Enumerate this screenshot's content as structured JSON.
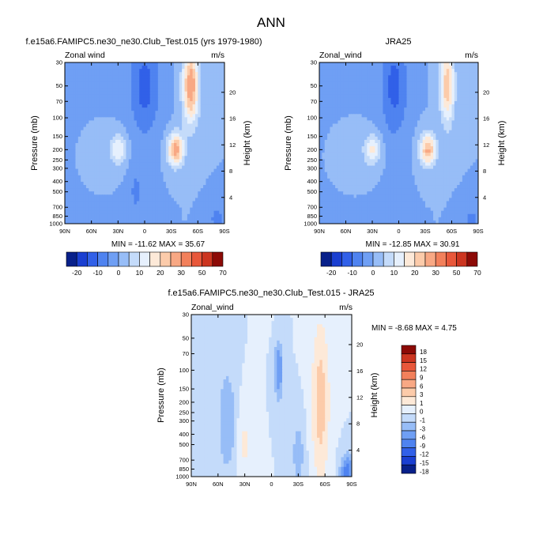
{
  "figure": {
    "title": "ANN"
  },
  "colors": {
    "abs_palette": [
      "#08208a",
      "#1a3fd1",
      "#3160e8",
      "#4f83f0",
      "#6f9ff4",
      "#97bdf7",
      "#c4dbfa",
      "#e6f0fd",
      "#fde9d8",
      "#fccbaa",
      "#f8a884",
      "#f2805b",
      "#e8573a",
      "#cc3520",
      "#8c0a06"
    ],
    "diff_palette": [
      "#08208a",
      "#1a3fd1",
      "#3160e8",
      "#4f83f0",
      "#6f9ff4",
      "#97bdf7",
      "#c4dbfa",
      "#e6f0fd",
      "#fde9d8",
      "#fccbaa",
      "#f8a884",
      "#f2805b",
      "#e8573a",
      "#cc3520",
      "#8c0a06"
    ],
    "axis": "#000000"
  },
  "chart_data": [
    {
      "type": "heatmap",
      "id": "model",
      "title": "f.e15a6.FAMIPC5.ne30_ne30.Club_Test.015 (yrs 1979-1980)",
      "left_label": "Zonal wind",
      "right_label": "m/s",
      "xlabel": "",
      "ylabel": "Pressure (mb)",
      "y2label": "Height (km)",
      "xticks": [
        "90N",
        "60N",
        "30N",
        "0",
        "30S",
        "60S",
        "90S"
      ],
      "xlim": [
        90,
        -90
      ],
      "yticks": [
        30,
        50,
        70,
        100,
        150,
        200,
        250,
        300,
        400,
        500,
        700,
        850,
        1000
      ],
      "ylim": [
        1000,
        30
      ],
      "y2ticks": [
        4,
        8,
        12,
        16,
        20
      ],
      "stats": "MIN = -11.62  MAX =  35.67",
      "min": -11.62,
      "max": 35.67,
      "field": [
        {
          "lat": 30,
          "p": 200,
          "val": 15,
          "sx": 10,
          "sy": 0.32
        },
        {
          "lat": -35,
          "p": 200,
          "val": 28,
          "sx": 9,
          "sy": 0.35
        },
        {
          "lat": -52,
          "p": 50,
          "val": 30,
          "sx": 9,
          "sy": 0.8
        },
        {
          "lat": 0,
          "p": 50,
          "val": -12,
          "sx": 17,
          "sy": 1.1
        },
        {
          "lat": 10,
          "p": 500,
          "val": -6,
          "sx": 8,
          "sy": 0.6
        },
        {
          "lat": -82,
          "p": 900,
          "val": -7,
          "sx": 10,
          "sy": 0.3
        }
      ]
    },
    {
      "type": "heatmap",
      "id": "obs",
      "title": "JRA25",
      "left_label": "Zonal_wind",
      "right_label": "m/s",
      "xlabel": "",
      "ylabel": "Pressure (mb)",
      "y2label": "Height (km)",
      "xticks": [
        "90N",
        "60N",
        "30N",
        "0",
        "30S",
        "60S",
        "90S"
      ],
      "xlim": [
        90,
        -90
      ],
      "yticks": [
        30,
        50,
        70,
        100,
        150,
        200,
        250,
        300,
        400,
        500,
        700,
        850,
        1000
      ],
      "ylim": [
        1000,
        30
      ],
      "y2ticks": [
        4,
        8,
        12,
        16,
        20
      ],
      "stats": "MIN = -12.85  MAX =  30.91",
      "min": -12.85,
      "max": 30.91,
      "field": [
        {
          "lat": 30,
          "p": 200,
          "val": 16,
          "sx": 10,
          "sy": 0.32
        },
        {
          "lat": -33,
          "p": 200,
          "val": 26,
          "sx": 9,
          "sy": 0.35
        },
        {
          "lat": -55,
          "p": 50,
          "val": 24,
          "sx": 8,
          "sy": 0.8
        },
        {
          "lat": 5,
          "p": 50,
          "val": -12,
          "sx": 15,
          "sy": 1.1
        },
        {
          "lat": -82,
          "p": 900,
          "val": -6,
          "sx": 10,
          "sy": 0.3
        }
      ]
    },
    {
      "type": "heatmap",
      "id": "diff",
      "title": "f.e15a6.FAMIPC5.ne30_ne30.Club_Test.015 - JRA25",
      "left_label": "Zonal_wind",
      "right_label": "m/s",
      "xlabel": "",
      "ylabel": "Pressure (mb)",
      "y2label": "Height (km)",
      "xticks": [
        "90N",
        "60N",
        "30N",
        "0",
        "30S",
        "60S",
        "90S"
      ],
      "xlim": [
        90,
        -90
      ],
      "yticks": [
        30,
        50,
        70,
        100,
        150,
        200,
        250,
        300,
        400,
        500,
        700,
        850,
        1000
      ],
      "ylim": [
        1000,
        30
      ],
      "y2ticks": [
        4,
        8,
        12,
        16,
        20
      ],
      "stats": "MIN = -8.68  MAX =  4.75",
      "min": -8.68,
      "max": 4.75,
      "field": [
        {
          "lat": -55,
          "p": 200,
          "val": 4.5,
          "sx": 8,
          "sy": 1.4
        },
        {
          "lat": -8,
          "p": 100,
          "val": -6,
          "sx": 4,
          "sy": 0.5
        },
        {
          "lat": 50,
          "p": 300,
          "val": -3,
          "sx": 8,
          "sy": 0.9
        },
        {
          "lat": 30,
          "p": 500,
          "val": 1.2,
          "sx": 8,
          "sy": 0.7
        },
        {
          "lat": 10,
          "p": 30,
          "val": 1.0,
          "sx": 5,
          "sy": 0.3
        },
        {
          "lat": -85,
          "p": 900,
          "val": -8,
          "sx": 6,
          "sy": 0.3
        },
        {
          "lat": -30,
          "p": 600,
          "val": -2,
          "sx": 6,
          "sy": 0.6
        }
      ]
    }
  ],
  "colorbars": {
    "abs": {
      "labels": [
        "-20",
        "-10",
        "0",
        "10",
        "20",
        "30",
        "50",
        "70"
      ]
    },
    "diff": {
      "labels": [
        "18",
        "15",
        "12",
        "9",
        "6",
        "3",
        "1",
        "0",
        "-1",
        "-3",
        "-6",
        "-9",
        "-12",
        "-15",
        "-18"
      ]
    }
  }
}
